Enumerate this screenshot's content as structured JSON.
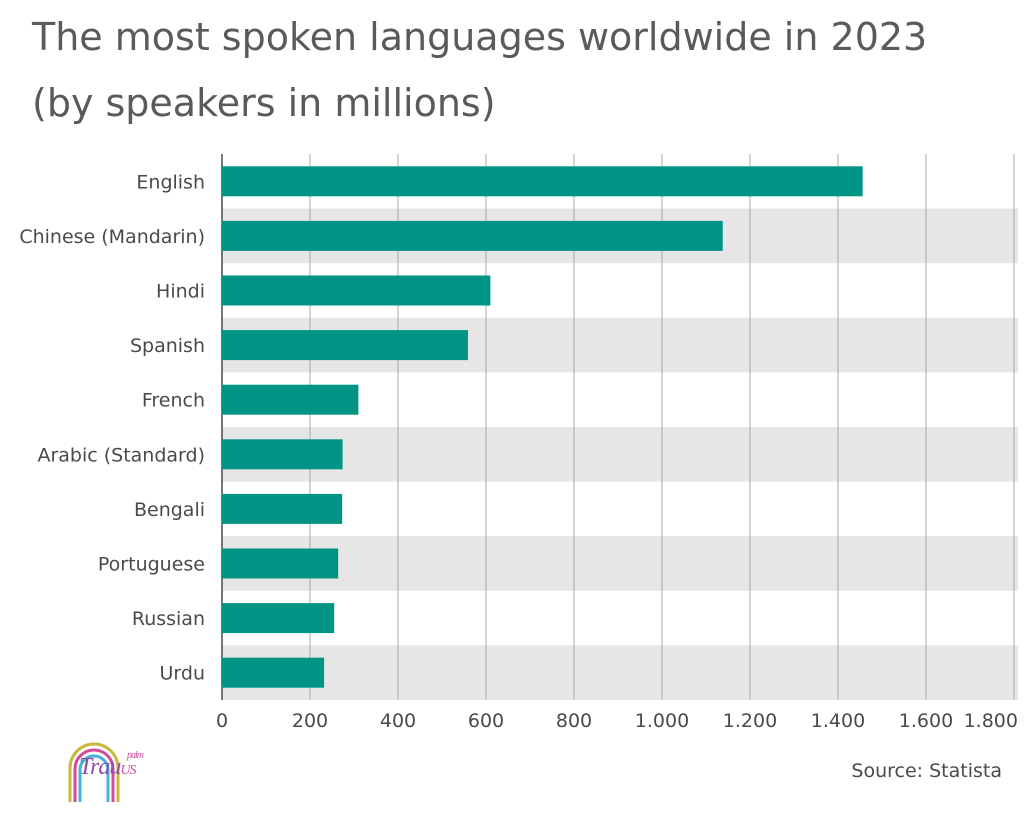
{
  "title_line1": "The most spoken languages worldwide in 2023",
  "title_line2": "(by speakers in millions)",
  "source": "Source: Statista",
  "logo": {
    "main": "Trau",
    "sub": "palm",
    "suffix": "US"
  },
  "colors": {
    "bar": "#009485",
    "band": "#e6e6e6",
    "grid": "#a8a8a8",
    "axis": "#4a4a4a"
  },
  "chart_data": {
    "type": "bar",
    "orientation": "horizontal",
    "categories": [
      "English",
      "Chinese (Mandarin)",
      "Hindi",
      "Spanish",
      "French",
      "Arabic (Standard)",
      "Bengali",
      "Portuguese",
      "Russian",
      "Urdu"
    ],
    "values": [
      1456,
      1138,
      610,
      559,
      310,
      274,
      273,
      264,
      255,
      232
    ],
    "xlim": [
      0,
      1800
    ],
    "xticks": [
      0,
      200,
      400,
      600,
      800,
      1000,
      1200,
      1400,
      1600,
      1800
    ],
    "xtick_labels": [
      "0",
      "200",
      "400",
      "600",
      "800",
      "1.000",
      "1.200",
      "1.400",
      "1.600",
      "1.800"
    ],
    "grid": true
  }
}
